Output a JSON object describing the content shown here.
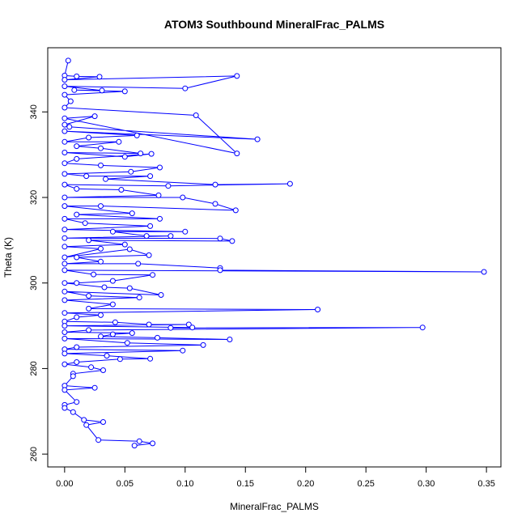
{
  "chart_data": {
    "type": "line",
    "title": "ATOM3 Southbound MineralFrac_PALMS",
    "xlabel": "MineralFrac_PALMS",
    "ylabel": "Theta (K)",
    "xlim": [
      -0.014,
      0.362
    ],
    "ylim": [
      257.0,
      355.0
    ],
    "x_ticks": [
      0.0,
      0.05,
      0.1,
      0.15,
      0.2,
      0.25,
      0.3,
      0.35
    ],
    "x_tick_labels": [
      "0.00",
      "0.05",
      "0.10",
      "0.15",
      "0.20",
      "0.25",
      "0.30",
      "0.35"
    ],
    "y_ticks": [
      260,
      280,
      300,
      320,
      340
    ],
    "y_tick_labels": [
      "260",
      "280",
      "300",
      "320",
      "340"
    ],
    "grid": false,
    "markers": "open-circle",
    "colors": {
      "series": "#0000ff",
      "axis": "#000000",
      "background": "#ffffff"
    },
    "series": [
      {
        "points": [
          [
            0.003,
            352.0
          ],
          [
            0.0,
            348.5
          ],
          [
            0.01,
            348.3
          ],
          [
            0.029,
            348.2
          ],
          [
            0.0,
            347.5
          ],
          [
            0.143,
            348.4
          ],
          [
            0.1,
            345.5
          ],
          [
            0.0,
            346.0
          ],
          [
            0.031,
            345.0
          ],
          [
            0.008,
            345.1
          ],
          [
            0.05,
            344.8
          ],
          [
            0.0,
            344.0
          ],
          [
            0.005,
            342.5
          ],
          [
            0.0,
            341.0
          ],
          [
            0.109,
            339.2
          ],
          [
            0.143,
            330.3
          ],
          [
            0.0,
            338.5
          ],
          [
            0.025,
            339.0
          ],
          [
            0.0,
            337.0
          ],
          [
            0.004,
            336.5
          ],
          [
            0.16,
            333.6
          ],
          [
            0.0,
            335.5
          ],
          [
            0.06,
            334.5
          ],
          [
            0.02,
            334.0
          ],
          [
            0.0,
            333.0
          ],
          [
            0.045,
            333.0
          ],
          [
            0.01,
            332.0
          ],
          [
            0.03,
            331.5
          ],
          [
            0.063,
            330.3
          ],
          [
            0.0,
            330.5
          ],
          [
            0.05,
            329.5
          ],
          [
            0.072,
            330.2
          ],
          [
            0.01,
            329.0
          ],
          [
            0.0,
            328.0
          ],
          [
            0.03,
            327.5
          ],
          [
            0.079,
            327.0
          ],
          [
            0.055,
            326.0
          ],
          [
            0.0,
            325.5
          ],
          [
            0.018,
            325.0
          ],
          [
            0.071,
            325.0
          ],
          [
            0.034,
            324.3
          ],
          [
            0.125,
            323.0
          ],
          [
            0.187,
            323.2
          ],
          [
            0.086,
            322.7
          ],
          [
            0.0,
            323.0
          ],
          [
            0.01,
            322.0
          ],
          [
            0.047,
            321.8
          ],
          [
            0.078,
            320.5
          ],
          [
            0.0,
            320.0
          ],
          [
            0.098,
            320.0
          ],
          [
            0.125,
            318.5
          ],
          [
            0.142,
            317.0
          ],
          [
            0.03,
            318.0
          ],
          [
            0.0,
            318.0
          ],
          [
            0.056,
            316.3
          ],
          [
            0.01,
            316.0
          ],
          [
            0.079,
            315.0
          ],
          [
            0.0,
            315.0
          ],
          [
            0.017,
            314.0
          ],
          [
            0.071,
            313.3
          ],
          [
            0.0,
            312.5
          ],
          [
            0.1,
            312.0
          ],
          [
            0.04,
            312.0
          ],
          [
            0.068,
            311.0
          ],
          [
            0.088,
            311.0
          ],
          [
            0.0,
            310.5
          ],
          [
            0.129,
            310.4
          ],
          [
            0.139,
            309.8
          ],
          [
            0.02,
            310.0
          ],
          [
            0.05,
            309.0
          ],
          [
            0.0,
            308.5
          ],
          [
            0.03,
            308.0
          ],
          [
            0.0,
            306.0
          ],
          [
            0.054,
            307.9
          ],
          [
            0.07,
            306.5
          ],
          [
            0.01,
            306.0
          ],
          [
            0.03,
            305.0
          ],
          [
            0.0,
            304.5
          ],
          [
            0.061,
            304.5
          ],
          [
            0.129,
            303.5
          ],
          [
            0.129,
            303.0
          ],
          [
            0.348,
            302.6
          ],
          [
            0.0,
            303.0
          ],
          [
            0.024,
            302.0
          ],
          [
            0.073,
            301.9
          ],
          [
            0.04,
            300.5
          ],
          [
            0.01,
            300.0
          ],
          [
            0.0,
            300.0
          ],
          [
            0.033,
            299.0
          ],
          [
            0.054,
            298.8
          ],
          [
            0.08,
            297.2
          ],
          [
            0.0,
            298.0
          ],
          [
            0.02,
            297.0
          ],
          [
            0.062,
            296.6
          ],
          [
            0.0,
            296.0
          ],
          [
            0.04,
            295.0
          ],
          [
            0.02,
            294.0
          ],
          [
            0.21,
            293.8
          ],
          [
            0.0,
            293.0
          ],
          [
            0.03,
            292.5
          ],
          [
            0.01,
            292.0
          ],
          [
            0.0,
            291.0
          ],
          [
            0.042,
            290.8
          ],
          [
            0.07,
            290.3
          ],
          [
            0.103,
            290.3
          ],
          [
            0.0,
            290.0
          ],
          [
            0.106,
            289.6
          ],
          [
            0.088,
            289.5
          ],
          [
            0.297,
            289.6
          ],
          [
            0.02,
            289.0
          ],
          [
            0.0,
            288.5
          ],
          [
            0.056,
            288.3
          ],
          [
            0.04,
            288.0
          ],
          [
            0.03,
            287.5
          ],
          [
            0.077,
            287.2
          ],
          [
            0.137,
            286.8
          ],
          [
            0.0,
            287.0
          ],
          [
            0.052,
            286.0
          ],
          [
            0.115,
            285.5
          ],
          [
            0.01,
            285.0
          ],
          [
            0.0,
            284.5
          ],
          [
            0.098,
            284.2
          ],
          [
            0.0,
            283.5
          ],
          [
            0.035,
            283.0
          ],
          [
            0.071,
            282.3
          ],
          [
            0.046,
            282.2
          ],
          [
            0.01,
            281.5
          ],
          [
            0.0,
            281.0
          ],
          [
            0.022,
            280.3
          ],
          [
            0.032,
            279.6
          ],
          [
            0.007,
            278.8
          ],
          [
            0.007,
            278.2
          ],
          [
            0.0,
            276.0
          ],
          [
            0.025,
            275.5
          ],
          [
            0.0,
            275.0
          ],
          [
            0.01,
            272.2
          ],
          [
            0.0,
            271.5
          ],
          [
            0.0,
            270.8
          ],
          [
            0.007,
            269.8
          ],
          [
            0.016,
            268.0
          ],
          [
            0.032,
            267.5
          ],
          [
            0.018,
            266.8
          ],
          [
            0.028,
            263.3
          ],
          [
            0.062,
            263.0
          ],
          [
            0.073,
            262.5
          ],
          [
            0.058,
            262.0
          ]
        ]
      }
    ]
  }
}
